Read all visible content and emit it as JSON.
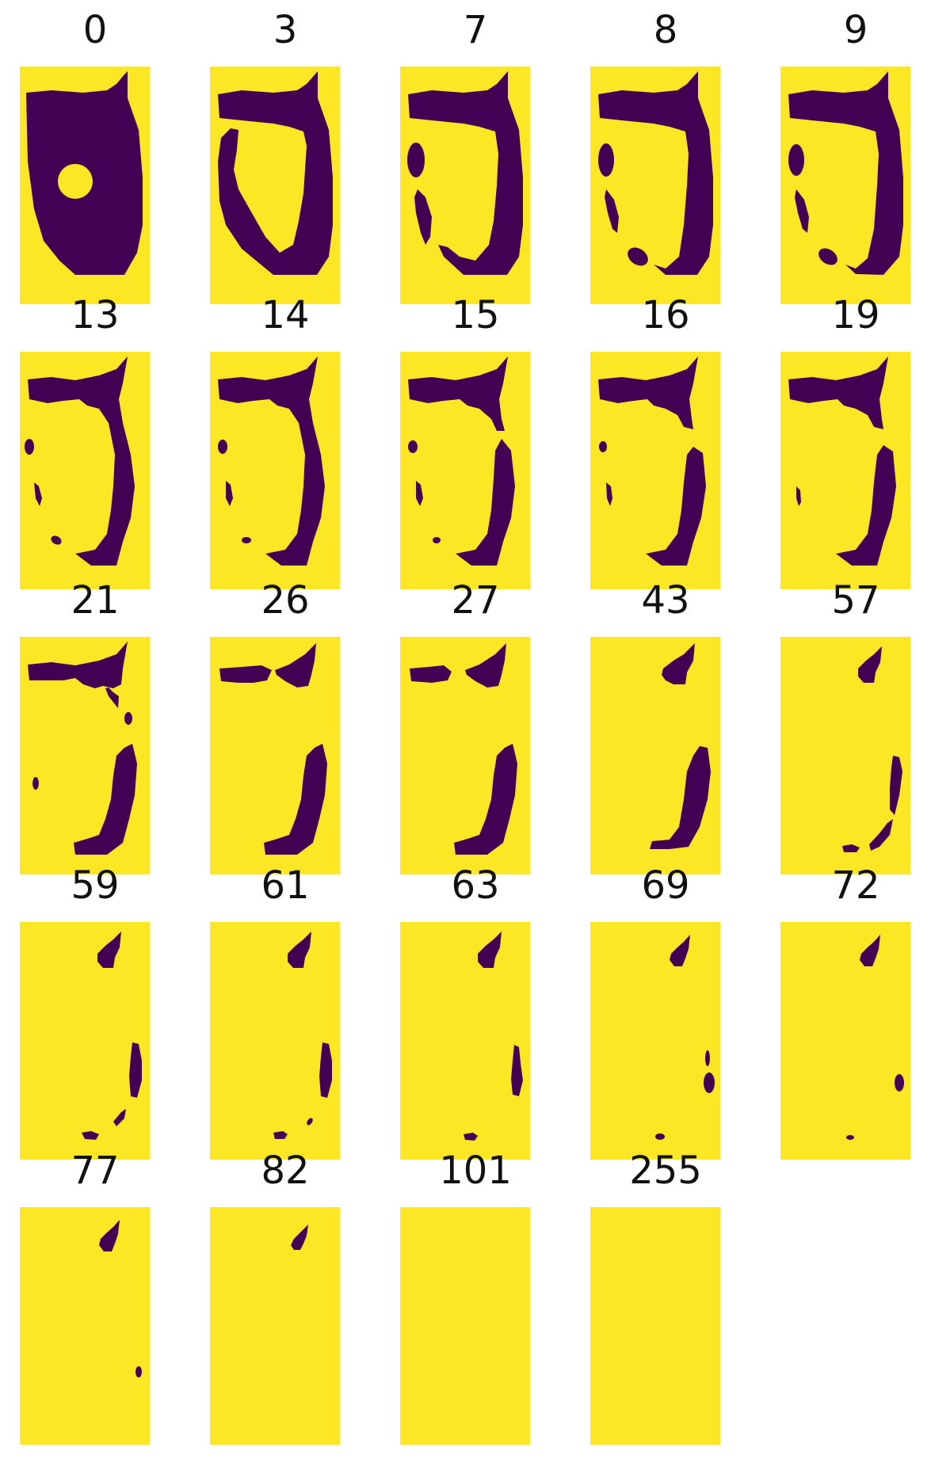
{
  "colors": {
    "background": "#fde725",
    "foreground": "#440154",
    "page": "#ffffff"
  },
  "panels": [
    {
      "label": "0"
    },
    {
      "label": "3"
    },
    {
      "label": "7"
    },
    {
      "label": "8"
    },
    {
      "label": "9"
    },
    {
      "label": "13"
    },
    {
      "label": "14"
    },
    {
      "label": "15"
    },
    {
      "label": "16"
    },
    {
      "label": "19"
    },
    {
      "label": "21"
    },
    {
      "label": "26"
    },
    {
      "label": "27"
    },
    {
      "label": "43"
    },
    {
      "label": "57"
    },
    {
      "label": "59"
    },
    {
      "label": "61"
    },
    {
      "label": "63"
    },
    {
      "label": "69"
    },
    {
      "label": "72"
    },
    {
      "label": "77"
    },
    {
      "label": "82"
    },
    {
      "label": "101"
    },
    {
      "label": "255"
    }
  ]
}
